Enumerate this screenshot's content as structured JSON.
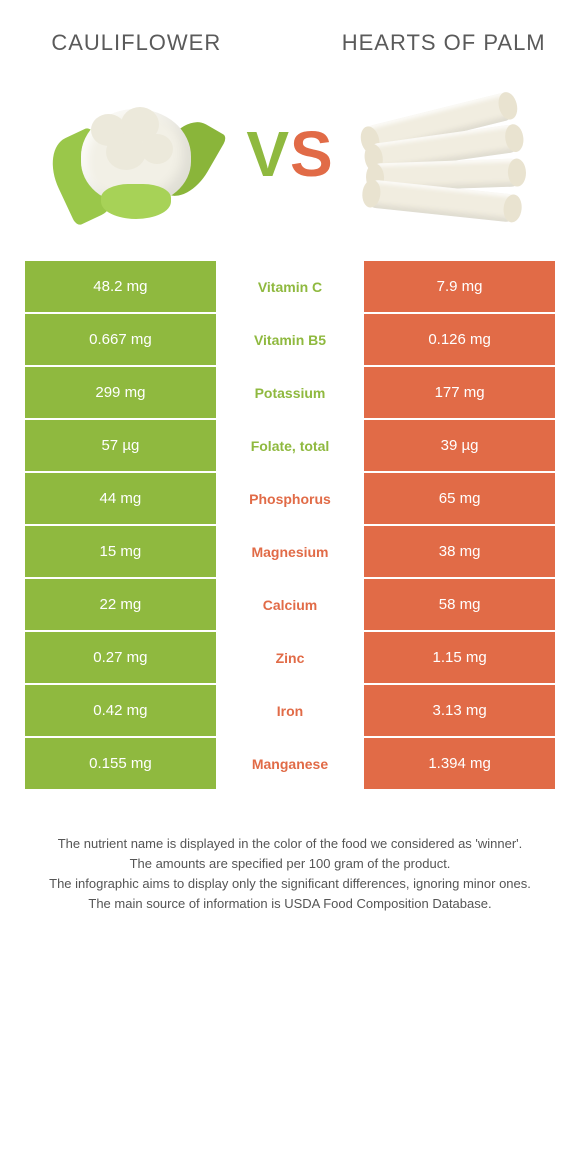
{
  "left": {
    "name": "Cauliflower",
    "color": "#8fb93f"
  },
  "right": {
    "name": "Hearts of palm",
    "color": "#e16b47"
  },
  "vs": "VS",
  "rows": [
    {
      "nutrient": "Vitamin C",
      "winner": "left",
      "left": "48.2 mg",
      "right": "7.9 mg"
    },
    {
      "nutrient": "Vitamin B5",
      "winner": "left",
      "left": "0.667 mg",
      "right": "0.126 mg"
    },
    {
      "nutrient": "Potassium",
      "winner": "left",
      "left": "299 mg",
      "right": "177 mg"
    },
    {
      "nutrient": "Folate, total",
      "winner": "left",
      "left": "57 µg",
      "right": "39 µg"
    },
    {
      "nutrient": "Phosphorus",
      "winner": "right",
      "left": "44 mg",
      "right": "65 mg"
    },
    {
      "nutrient": "Magnesium",
      "winner": "right",
      "left": "15 mg",
      "right": "38 mg"
    },
    {
      "nutrient": "Calcium",
      "winner": "right",
      "left": "22 mg",
      "right": "58 mg"
    },
    {
      "nutrient": "Zinc",
      "winner": "right",
      "left": "0.27 mg",
      "right": "1.15 mg"
    },
    {
      "nutrient": "Iron",
      "winner": "right",
      "left": "0.42 mg",
      "right": "3.13 mg"
    },
    {
      "nutrient": "Manganese",
      "winner": "right",
      "left": "0.155 mg",
      "right": "1.394 mg"
    }
  ],
  "footer": {
    "line1": "The nutrient name is displayed in the color of the food we considered as 'winner'.",
    "line2": "The amounts are specified per 100 gram of the product.",
    "line3": "The infographic aims to display only the significant differences, ignoring minor ones.",
    "line4": "The main source of information is USDA Food Composition Database."
  }
}
